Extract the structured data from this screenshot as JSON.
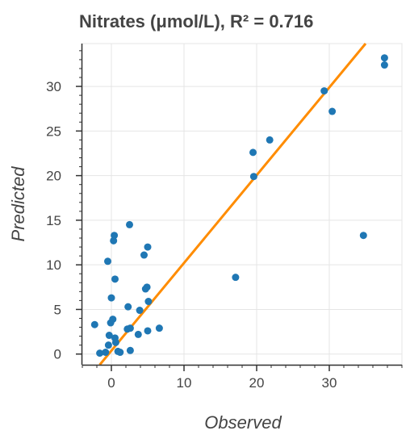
{
  "chart_data": {
    "type": "scatter",
    "title": "Nitrates (μmol/L), R² = 0.716",
    "xlabel": "Observed",
    "ylabel": "Predicted",
    "xlim": [
      -4,
      40
    ],
    "ylim": [
      -1.2,
      34.8
    ],
    "x_ticks": [
      0,
      10,
      20,
      30
    ],
    "y_ticks": [
      0,
      5,
      10,
      15,
      20,
      25,
      30
    ],
    "grid": true,
    "colors": {
      "points": "#1f77b4",
      "fit_line": "#ff8c00",
      "grid": "#e5e5e5",
      "axis": "#333333"
    },
    "points": [
      {
        "x": -2.3,
        "y": 3.3
      },
      {
        "x": -1.6,
        "y": 0.1
      },
      {
        "x": -0.8,
        "y": 0.2
      },
      {
        "x": -0.5,
        "y": 10.4
      },
      {
        "x": -0.4,
        "y": 1.0
      },
      {
        "x": -0.3,
        "y": 2.1
      },
      {
        "x": -0.1,
        "y": 3.5
      },
      {
        "x": 0.0,
        "y": 6.3
      },
      {
        "x": 0.2,
        "y": 3.9
      },
      {
        "x": 0.3,
        "y": 12.7
      },
      {
        "x": 0.4,
        "y": 13.3
      },
      {
        "x": 0.5,
        "y": 8.4
      },
      {
        "x": 0.5,
        "y": 1.8
      },
      {
        "x": 0.6,
        "y": 1.3
      },
      {
        "x": 0.9,
        "y": 0.3
      },
      {
        "x": 1.2,
        "y": 0.2
      },
      {
        "x": 2.2,
        "y": 2.8
      },
      {
        "x": 2.3,
        "y": 5.3
      },
      {
        "x": 2.5,
        "y": 14.5
      },
      {
        "x": 2.6,
        "y": 2.9
      },
      {
        "x": 2.6,
        "y": 0.4
      },
      {
        "x": 3.7,
        "y": 2.2
      },
      {
        "x": 3.9,
        "y": 4.9
      },
      {
        "x": 4.5,
        "y": 11.1
      },
      {
        "x": 4.7,
        "y": 7.3
      },
      {
        "x": 4.9,
        "y": 7.5
      },
      {
        "x": 5.0,
        "y": 12.0
      },
      {
        "x": 5.0,
        "y": 2.6
      },
      {
        "x": 5.1,
        "y": 5.9
      },
      {
        "x": 6.6,
        "y": 2.9
      },
      {
        "x": 17.1,
        "y": 8.6
      },
      {
        "x": 19.5,
        "y": 22.6
      },
      {
        "x": 19.6,
        "y": 19.9
      },
      {
        "x": 21.8,
        "y": 24.0
      },
      {
        "x": 29.3,
        "y": 29.5
      },
      {
        "x": 30.4,
        "y": 27.2
      },
      {
        "x": 34.7,
        "y": 13.3
      },
      {
        "x": 37.6,
        "y": 33.2
      },
      {
        "x": 37.6,
        "y": 32.4
      }
    ],
    "fit_line": [
      {
        "x": -1.6,
        "y": -1.2
      },
      {
        "x": 35.0,
        "y": 34.8
      }
    ]
  }
}
